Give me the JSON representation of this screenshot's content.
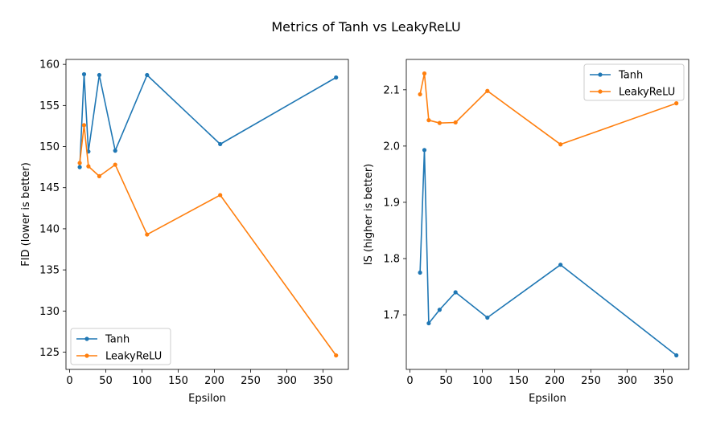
{
  "figure_title": "Metrics of Tanh vs LeakyReLU",
  "colors": {
    "Tanh": "#1f77b4",
    "LeakyReLU": "#ff7f0e"
  },
  "chart_data": [
    {
      "type": "line",
      "title": "",
      "xlabel": "Epsilon",
      "ylabel": "FID (lower is better)",
      "xlim": [
        -5,
        385
      ],
      "ylim": [
        122.9,
        160.6
      ],
      "xticks": [
        0,
        50,
        100,
        150,
        200,
        250,
        300,
        350
      ],
      "yticks": [
        125,
        130,
        135,
        140,
        145,
        150,
        155,
        160
      ],
      "legend_position": "lower-left",
      "series": [
        {
          "name": "Tanh",
          "x": [
            14,
            20,
            26,
            41,
            63,
            107,
            208,
            368
          ],
          "y": [
            147.5,
            158.8,
            149.4,
            158.7,
            149.5,
            158.7,
            150.3,
            158.4
          ]
        },
        {
          "name": "LeakyReLU",
          "x": [
            14,
            20,
            26,
            41,
            63,
            107,
            208,
            368
          ],
          "y": [
            148.0,
            152.6,
            147.6,
            146.4,
            147.8,
            139.3,
            144.1,
            124.6
          ]
        }
      ]
    },
    {
      "type": "line",
      "title": "",
      "xlabel": "Epsilon",
      "ylabel": "IS (higher is better)",
      "xlim": [
        -5,
        385
      ],
      "ylim": [
        1.603,
        2.154
      ],
      "xticks": [
        0,
        50,
        100,
        150,
        200,
        250,
        300,
        350
      ],
      "yticks": [
        1.7,
        1.8,
        1.9,
        2.0,
        2.1
      ],
      "yticklabels": [
        "1.7",
        "1.8",
        "1.9",
        "2.0",
        "2.1"
      ],
      "legend_position": "upper-right",
      "series": [
        {
          "name": "Tanh",
          "x": [
            14,
            20,
            26,
            41,
            63,
            107,
            208,
            368
          ],
          "y": [
            1.775,
            1.993,
            1.685,
            1.709,
            1.74,
            1.695,
            1.789,
            1.628
          ]
        },
        {
          "name": "LeakyReLU",
          "x": [
            14,
            20,
            26,
            41,
            63,
            107,
            208,
            368
          ],
          "y": [
            2.092,
            2.129,
            2.046,
            2.041,
            2.042,
            2.098,
            2.003,
            2.076
          ]
        }
      ]
    }
  ]
}
